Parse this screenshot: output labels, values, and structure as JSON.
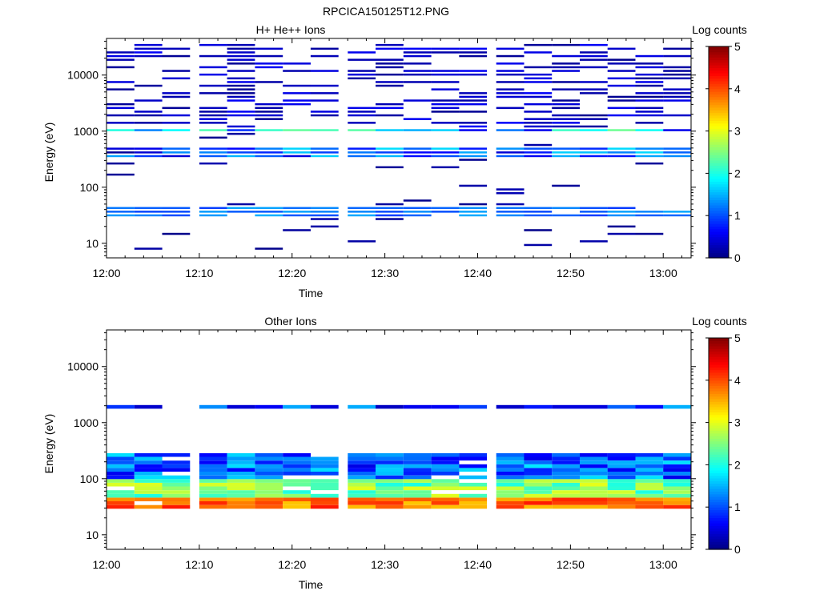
{
  "figure": {
    "title": "RPCICA150125T12.PNG"
  },
  "chart_data": [
    {
      "type": "heatmap",
      "title": "H+ He++ Ions",
      "xlabel": "Time",
      "ylabel": "Energy (eV)",
      "x_ticks": [
        "12:00",
        "12:10",
        "12:20",
        "12:30",
        "12:40",
        "12:50",
        "13:00"
      ],
      "x_range": [
        "12:00",
        "13:03"
      ],
      "y_scale": "log",
      "y_ticks": [
        "10",
        "100",
        "1000",
        "10000"
      ],
      "ylim": [
        5.5,
        45000
      ],
      "colorbar": {
        "label": "Log counts",
        "ticks": [
          "0",
          "1",
          "2",
          "3",
          "4",
          "5"
        ],
        "range": [
          0,
          5
        ],
        "colormap": "jet"
      },
      "time_bins": [
        "12:00",
        "12:03",
        "12:06",
        "12:10",
        "12:13",
        "12:16",
        "12:19",
        "12:22",
        "12:26",
        "12:29",
        "12:32",
        "12:35",
        "12:38",
        "12:42",
        "12:45",
        "12:48",
        "12:51",
        "12:54",
        "12:57",
        "13:00"
      ],
      "dominant_bands": [
        {
          "energy_range_eV": [
            28,
            45
          ],
          "log_counts": [
            0.9,
            1.5
          ]
        },
        {
          "energy_range_eV": [
            350,
            550
          ],
          "log_counts": [
            0.4,
            1.8
          ]
        },
        {
          "energy_range_eV": [
            900,
            1100
          ],
          "log_counts": [
            0.3,
            2.6
          ]
        },
        {
          "energy_range_eV": [
            1200,
            40000
          ],
          "log_counts": [
            0.1,
            0.6
          ]
        }
      ]
    },
    {
      "type": "heatmap",
      "title": "Other Ions",
      "xlabel": "Time",
      "ylabel": "Energy (eV)",
      "x_ticks": [
        "12:00",
        "12:10",
        "12:20",
        "12:30",
        "12:40",
        "12:50",
        "13:00"
      ],
      "x_range": [
        "12:00",
        "13:03"
      ],
      "y_scale": "log",
      "y_ticks": [
        "10",
        "100",
        "1000",
        "10000"
      ],
      "ylim": [
        5.5,
        45000
      ],
      "colorbar": {
        "label": "Log counts",
        "ticks": [
          "0",
          "1",
          "2",
          "3",
          "4",
          "5"
        ],
        "range": [
          0,
          5
        ],
        "colormap": "jet"
      },
      "time_bins": [
        "12:00",
        "12:03",
        "12:06",
        "12:10",
        "12:13",
        "12:16",
        "12:19",
        "12:22",
        "12:26",
        "12:29",
        "12:32",
        "12:35",
        "12:38",
        "12:42",
        "12:45",
        "12:48",
        "12:51",
        "12:54",
        "12:57",
        "13:00"
      ],
      "dominant_bands": [
        {
          "energy_range_eV": [
            30,
            45
          ],
          "log_counts": [
            3.4,
            4.3
          ]
        },
        {
          "energy_range_eV": [
            45,
            100
          ],
          "log_counts": [
            2.0,
            3.0
          ]
        },
        {
          "energy_range_eV": [
            100,
            280
          ],
          "log_counts": [
            0.5,
            1.8
          ]
        },
        {
          "energy_range_eV": [
            1800,
            2200
          ],
          "log_counts": [
            0.3,
            1.8
          ]
        }
      ]
    }
  ]
}
